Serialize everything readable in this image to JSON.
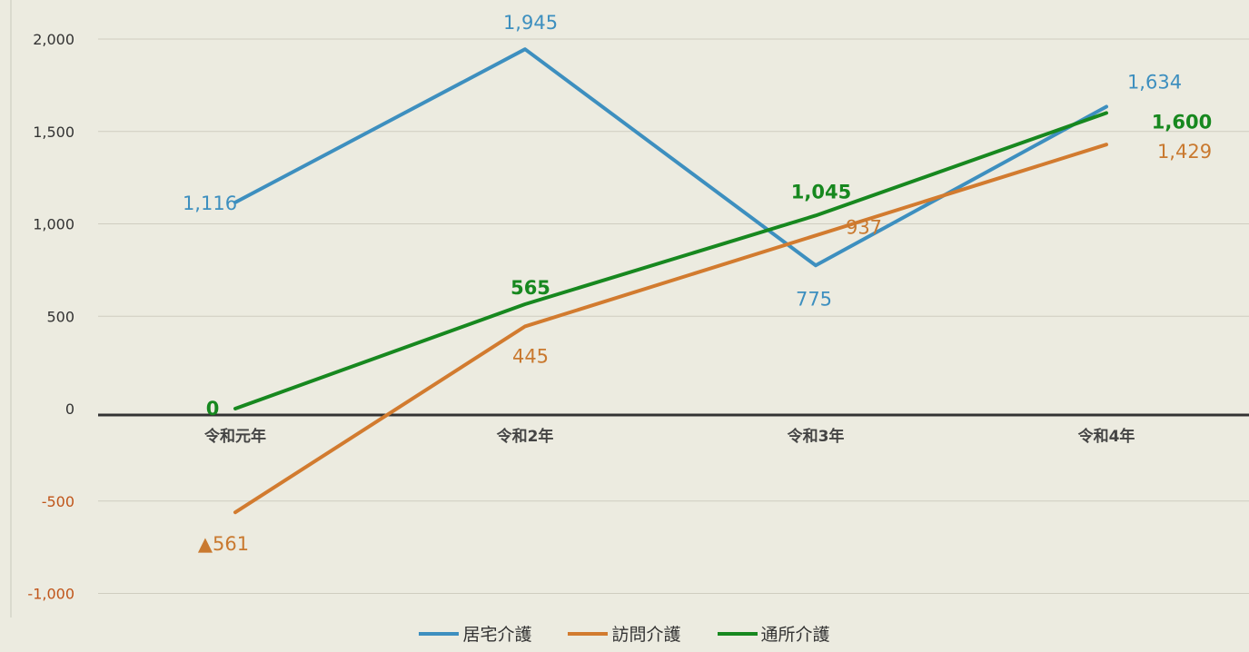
{
  "chart_data": {
    "type": "line",
    "categories": [
      "令和元年",
      "令和2年",
      "令和3年",
      "令和4年"
    ],
    "series": [
      {
        "name": "居宅介護",
        "values": [
          1116,
          1945,
          775,
          1634
        ],
        "labels": [
          "1,116",
          "1,945",
          "775",
          "1,634"
        ],
        "color": "#3d8fbf"
      },
      {
        "name": "訪問介護",
        "values": [
          -561,
          445,
          937,
          1429
        ],
        "labels": [
          "▲561",
          "445",
          "937",
          "1,429"
        ],
        "color": "#d27b2f"
      },
      {
        "name": "通所介護",
        "values": [
          0,
          565,
          1045,
          1600
        ],
        "labels": [
          "0",
          "565",
          "1,045",
          "1,600"
        ],
        "color": "#17881f"
      }
    ],
    "yticks": [
      "2,000",
      "1,500",
      "1,000",
      "500",
      "0",
      "-500",
      "-1,000"
    ],
    "ylim": [
      -1000,
      2000
    ],
    "grid": true,
    "legend": "bottom"
  }
}
